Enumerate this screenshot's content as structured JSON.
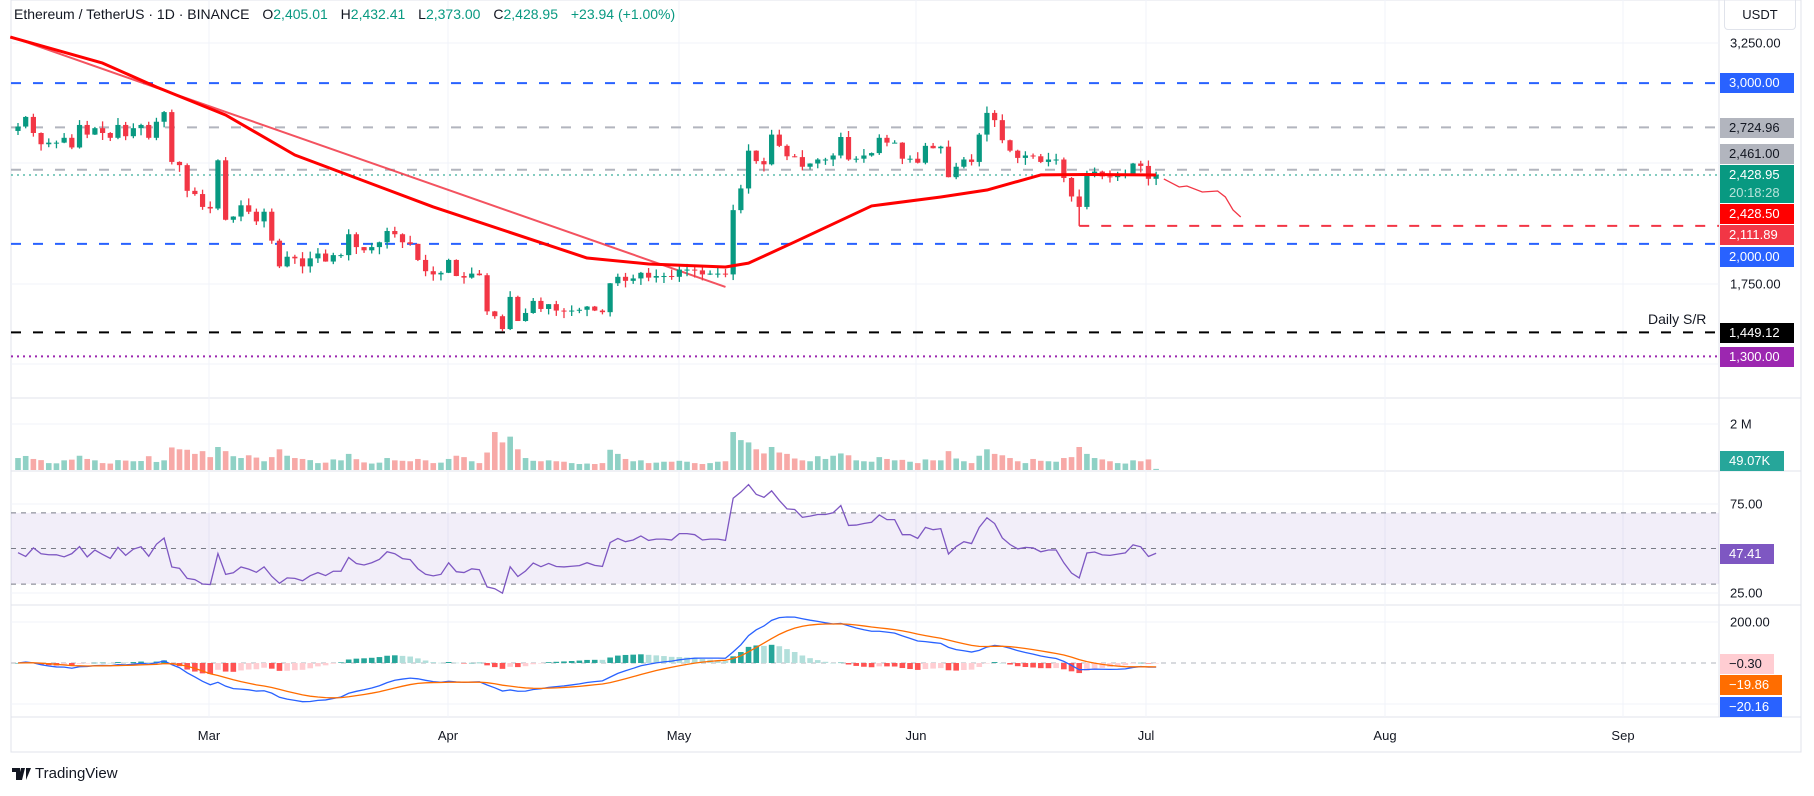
{
  "header": {
    "symbol": "Ethereum / TetherUS · 1D · BINANCE",
    "o_label": "O",
    "o": "2,405.01",
    "h_label": "H",
    "h": "2,432.41",
    "l_label": "L",
    "l": "2,373.00",
    "c_label": "C",
    "c": "2,428.95",
    "change": "+23.94 (+1.00%)"
  },
  "currency": "USDT",
  "price_axis": [
    "3,250.00",
    "1,750.00"
  ],
  "price_tags": [
    {
      "text": "3,000.00",
      "bg": "#2962ff",
      "fg": "#ffffff"
    },
    {
      "text": "2,724.96",
      "bg": "#b2b5be",
      "fg": "#131722"
    },
    {
      "text": "2,461.00",
      "bg": "#b2b5be",
      "fg": "#131722"
    },
    {
      "text": "2,428.95",
      "bg": "#089981",
      "fg": "#ffffff"
    },
    {
      "text": "20:18:28",
      "bg": "#089981",
      "fg": "#b7e3da"
    },
    {
      "text": "2,428.50",
      "bg": "#ff0000",
      "fg": "#ffffff"
    },
    {
      "text": "2,111.89",
      "bg": "#f23645",
      "fg": "#ffffff"
    },
    {
      "text": "2,000.00",
      "bg": "#2962ff",
      "fg": "#ffffff"
    },
    {
      "text": "1,449.12",
      "bg": "#000000",
      "fg": "#ffffff"
    },
    {
      "text": "1,300.00",
      "bg": "#9c27b0",
      "fg": "#ffffff"
    }
  ],
  "daily_sr_label": "Daily S/R",
  "volume_axis": "2 M",
  "volume_tag": "49.07K",
  "rsi_axis": [
    "75.00",
    "25.00"
  ],
  "rsi_tag": "47.41",
  "macd_axis": "200.00",
  "macd_tags": [
    "−0.30",
    "−19.86",
    "−20.16"
  ],
  "months": [
    "Mar",
    "Apr",
    "May",
    "Jun",
    "Jul",
    "Aug",
    "Sep"
  ],
  "brand": "TradingView",
  "chart_data": {
    "type": "candlestick",
    "interval": "1D",
    "first_date": "2025-02-04",
    "colors": {
      "up": "#089981",
      "down": "#f23645",
      "sma": "#ff0000",
      "rsi": "#7e57c2",
      "macd": "#2962ff",
      "signal": "#ff6d00"
    },
    "price_range": [
      1150,
      3400
    ],
    "close": [
      2730,
      2790,
      2690,
      2620,
      2630,
      2630,
      2660,
      2600,
      2740,
      2680,
      2720,
      2690,
      2660,
      2740,
      2670,
      2720,
      2740,
      2660,
      2760,
      2820,
      2510,
      2490,
      2330,
      2310,
      2230,
      2220,
      2520,
      2150,
      2170,
      2240,
      2200,
      2140,
      2200,
      2020,
      1860,
      1920,
      1910,
      1860,
      1910,
      1940,
      1890,
      1930,
      1930,
      2060,
      1980,
      1960,
      1980,
      2010,
      2080,
      2060,
      2010,
      2000,
      1900,
      1830,
      1810,
      1820,
      1900,
      1800,
      1790,
      1815,
      1805,
      1580,
      1550,
      1470,
      1670,
      1520,
      1570,
      1645,
      1595,
      1625,
      1585,
      1580,
      1585,
      1590,
      1610,
      1585,
      1575,
      1755,
      1795,
      1770,
      1785,
      1820,
      1790,
      1800,
      1800,
      1795,
      1840,
      1840,
      1835,
      1810,
      1815,
      1815,
      1810,
      2210,
      2345,
      2580,
      2515,
      2495,
      2680,
      2610,
      2545,
      2540,
      2480,
      2500,
      2525,
      2525,
      2550,
      2665,
      2525,
      2530,
      2550,
      2565,
      2660,
      2630,
      2630,
      2530,
      2530,
      2505,
      2610,
      2595,
      2605,
      2415,
      2480,
      2525,
      2510,
      2680,
      2815,
      2770,
      2645,
      2580,
      2535,
      2550,
      2545,
      2510,
      2525,
      2525,
      2410,
      2295,
      2230,
      2440,
      2450,
      2420,
      2415,
      2425,
      2435,
      2500,
      2485,
      2405,
      2428.95
    ],
    "volume_k": [
      520,
      610,
      480,
      430,
      300,
      290,
      420,
      450,
      620,
      480,
      420,
      300,
      280,
      430,
      410,
      380,
      390,
      600,
      350,
      420,
      980,
      900,
      880,
      700,
      820,
      560,
      1000,
      820,
      600,
      520,
      640,
      540,
      380,
      560,
      900,
      620,
      520,
      480,
      430,
      300,
      320,
      460,
      420,
      700,
      470,
      330,
      280,
      320,
      520,
      420,
      400,
      380,
      480,
      420,
      300,
      320,
      480,
      620,
      560,
      380,
      300,
      760,
      1650,
      1200,
      1450,
      900,
      520,
      400,
      380,
      420,
      380,
      360,
      300,
      260,
      280,
      260,
      300,
      880,
      700,
      480,
      380,
      420,
      300,
      320,
      360,
      360,
      400,
      360,
      300,
      260,
      300,
      360,
      380,
      1650,
      1300,
      1200,
      900,
      720,
      1000,
      760,
      700,
      500,
      420,
      380,
      600,
      480,
      620,
      720,
      640,
      420,
      380,
      360,
      560,
      480,
      420,
      440,
      360,
      300,
      460,
      420,
      420,
      820,
      500,
      380,
      300,
      620,
      900,
      700,
      640,
      520,
      380,
      300,
      480,
      400,
      380,
      360,
      520,
      560,
      1000,
      700,
      520,
      460,
      380,
      300,
      280,
      420,
      380,
      460,
      49.07
    ],
    "sma50": [
      [
        "2025-02-03",
        3287
      ],
      [
        "2025-02-15",
        3125
      ],
      [
        "2025-02-22",
        2976
      ],
      [
        "2025-03-03",
        2802
      ],
      [
        "2025-03-12",
        2553
      ],
      [
        "2025-03-30",
        2230
      ],
      [
        "2025-04-19",
        1912
      ],
      [
        "2025-04-27",
        1875
      ],
      [
        "2025-05-07",
        1856
      ],
      [
        "2025-05-10",
        1880
      ],
      [
        "2025-05-16",
        2012
      ],
      [
        "2025-05-26",
        2236
      ],
      [
        "2025-06-04",
        2292
      ],
      [
        "2025-06-10",
        2335
      ],
      [
        "2025-06-17",
        2429
      ],
      [
        "2025-06-23",
        2432
      ],
      [
        "2025-07-02",
        2428.5
      ]
    ],
    "trendline": [
      [
        "2025-02-03",
        3290
      ],
      [
        "2025-05-07",
        1732
      ]
    ],
    "forecast": [
      [
        "2025-07-03",
        2404
      ],
      [
        "2025-07-05",
        2354
      ],
      [
        "2025-07-06",
        2360
      ],
      [
        "2025-07-08",
        2323
      ],
      [
        "2025-07-10",
        2329
      ],
      [
        "2025-07-11",
        2292
      ],
      [
        "2025-07-12",
        2211
      ],
      [
        "2025-07-13",
        2167
      ]
    ],
    "levels": [
      {
        "price": 3000,
        "color": "#2962ff",
        "style": "dashed"
      },
      {
        "price": 2724.96,
        "color": "#b2b5be",
        "style": "dashed"
      },
      {
        "price": 2461,
        "color": "#b2b5be",
        "style": "dashed"
      },
      {
        "price": 2428.95,
        "color": "#089981",
        "style": "dotted"
      },
      {
        "price": 2111.89,
        "color": "#f23645",
        "style": "dashed",
        "from": "2025-06-22"
      },
      {
        "price": 2000,
        "color": "#2962ff",
        "style": "dashed"
      },
      {
        "price": 1449.12,
        "color": "#000000",
        "style": "dashed"
      },
      {
        "price": 1300,
        "color": "#9c27b0",
        "style": "dotted"
      }
    ],
    "rsi_bands": [
      70,
      50,
      30
    ]
  }
}
